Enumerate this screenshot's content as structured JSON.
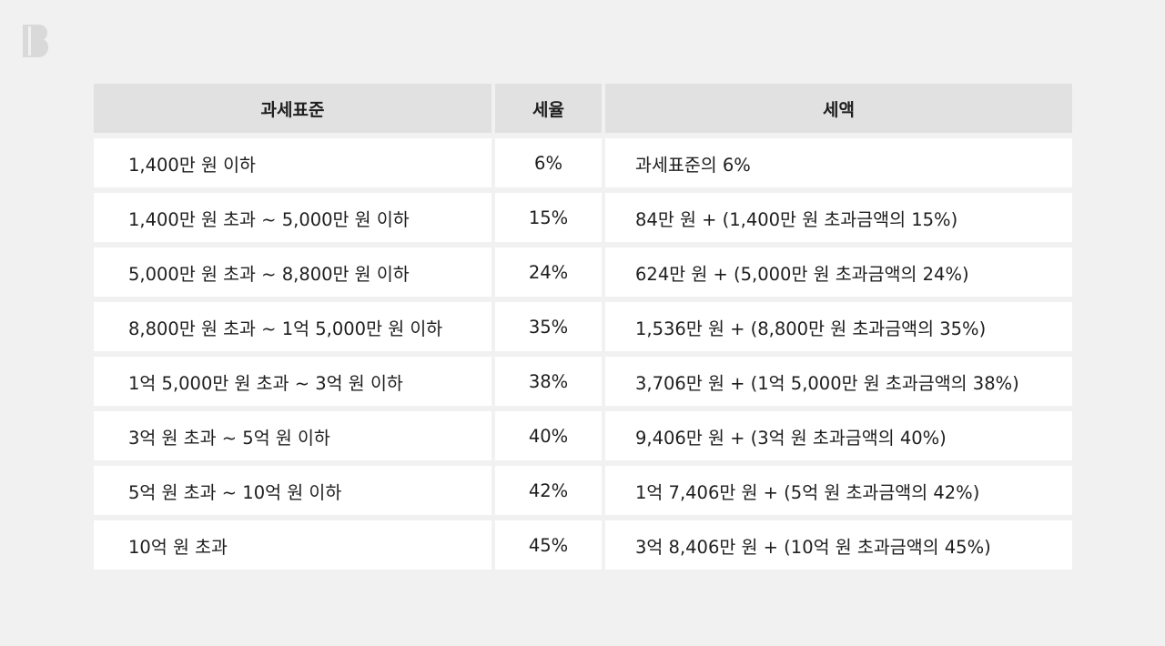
{
  "logo": {
    "icon": "brand-b-logo-icon",
    "color": "#d9d9d9"
  },
  "table": {
    "headers": [
      "과세표준",
      "세율",
      "세액"
    ],
    "rows": [
      {
        "base": "1,400만 원 이하",
        "rate": "6%",
        "amount": "과세표준의 6%"
      },
      {
        "base": "1,400만 원 초과 ~ 5,000만 원 이하",
        "rate": "15%",
        "amount": "84만 원 + (1,400만 원 초과금액의 15%)"
      },
      {
        "base": "5,000만 원 초과 ~ 8,800만 원 이하",
        "rate": "24%",
        "amount": "624만 원 + (5,000만 원 초과금액의 24%)"
      },
      {
        "base": "8,800만 원 초과 ~ 1억 5,000만 원 이하",
        "rate": "35%",
        "amount": "1,536만 원 + (8,800만 원 초과금액의 35%)"
      },
      {
        "base": "1억 5,000만 원 초과 ~ 3억 원 이하",
        "rate": "38%",
        "amount": "3,706만 원 + (1억 5,000만 원 초과금액의 38%)"
      },
      {
        "base": "3억 원 초과 ~ 5억 원 이하",
        "rate": "40%",
        "amount": "9,406만 원 + (3억 원 초과금액의 40%)"
      },
      {
        "base": "5억 원 초과 ~ 10억 원 이하",
        "rate": "42%",
        "amount": "1억 7,406만 원 + (5억 원 초과금액의 42%)"
      },
      {
        "base": "10억 원 초과",
        "rate": "45%",
        "amount": "3억 8,406만 원 + (10억 원 초과금액의 45%)"
      }
    ]
  }
}
